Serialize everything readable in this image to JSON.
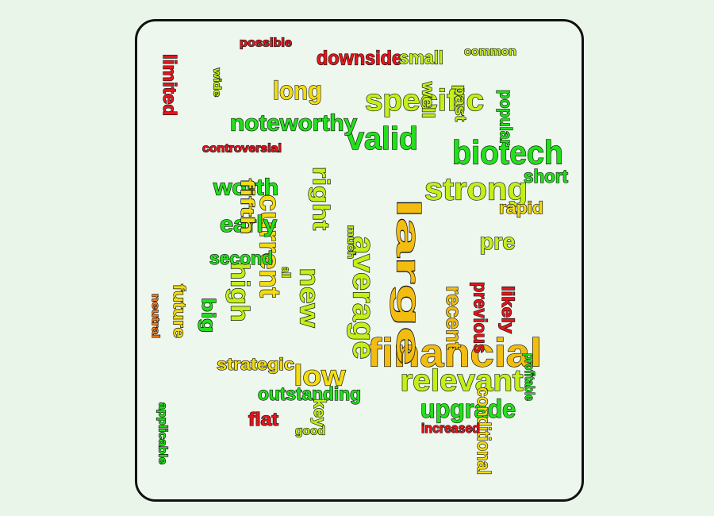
{
  "palette": {
    "red": "#e8141b",
    "orange": "#ff7b12",
    "yellow": "#f2dc12",
    "lime": "#c3f019",
    "green": "#22e01a",
    "gold": "#f2bd10"
  },
  "words": [
    {
      "text": "financial",
      "color": "#f2bd10"
    },
    {
      "text": "large",
      "color": "#f2bd10"
    },
    {
      "text": "strong",
      "color": "#c3f019"
    },
    {
      "text": "specific",
      "color": "#c3f019"
    },
    {
      "text": "biotech",
      "color": "#22e01a"
    },
    {
      "text": "relevant",
      "color": "#c3f019"
    },
    {
      "text": "average",
      "color": "#c3f019"
    },
    {
      "text": "current",
      "color": "#f2dc12"
    },
    {
      "text": "valid",
      "color": "#22e01a"
    },
    {
      "text": "new",
      "color": "#c3f019"
    },
    {
      "text": "low",
      "color": "#f2dc12"
    },
    {
      "text": "high",
      "color": "#c3f019"
    },
    {
      "text": "upgrade",
      "color": "#22e01a"
    },
    {
      "text": "noteworthy",
      "color": "#22e01a"
    },
    {
      "text": "recent",
      "color": "#f2bd10"
    },
    {
      "text": "worth",
      "color": "#22e01a"
    },
    {
      "text": "long",
      "color": "#f2dc12"
    },
    {
      "text": "early",
      "color": "#22e01a"
    },
    {
      "text": "right",
      "color": "#c3f019"
    },
    {
      "text": "conditional",
      "color": "#f2dc12"
    },
    {
      "text": "outstanding",
      "color": "#22e01a"
    },
    {
      "text": "downside",
      "color": "#e8141b"
    },
    {
      "text": "previous",
      "color": "#e8141b"
    },
    {
      "text": "pre",
      "color": "#c3f019"
    },
    {
      "text": "short",
      "color": "#22e01a"
    },
    {
      "text": "rapid",
      "color": "#f2dc12"
    },
    {
      "text": "small",
      "color": "#c3f019"
    },
    {
      "text": "strategic",
      "color": "#f2dc12"
    },
    {
      "text": "second",
      "color": "#22e01a"
    },
    {
      "text": "popular",
      "color": "#22e01a"
    },
    {
      "text": "likely",
      "color": "#e8141b"
    },
    {
      "text": "big",
      "color": "#22e01a"
    },
    {
      "text": "future",
      "color": "#f2dc12"
    },
    {
      "text": "limited",
      "color": "#e8141b"
    },
    {
      "text": "flat",
      "color": "#e8141b"
    },
    {
      "text": "key",
      "color": "#c3f019"
    },
    {
      "text": "fifth",
      "color": "#f2dc12"
    },
    {
      "text": "well",
      "color": "#c3f019"
    },
    {
      "text": "past",
      "color": "#c3f019"
    },
    {
      "text": "increased",
      "color": "#e8141b"
    },
    {
      "text": "controversial",
      "color": "#e8141b"
    },
    {
      "text": "possible",
      "color": "#e8141b"
    },
    {
      "text": "common",
      "color": "#c3f019"
    },
    {
      "text": "profitable",
      "color": "#22e01a"
    },
    {
      "text": "good",
      "color": "#c3f019"
    },
    {
      "text": "applicable",
      "color": "#22e01a"
    },
    {
      "text": "neutral",
      "color": "#ff7b12"
    },
    {
      "text": "much",
      "color": "#c3f019"
    },
    {
      "text": "wide",
      "color": "#c3f019"
    },
    {
      "text": "all",
      "color": "#c3f019"
    }
  ]
}
